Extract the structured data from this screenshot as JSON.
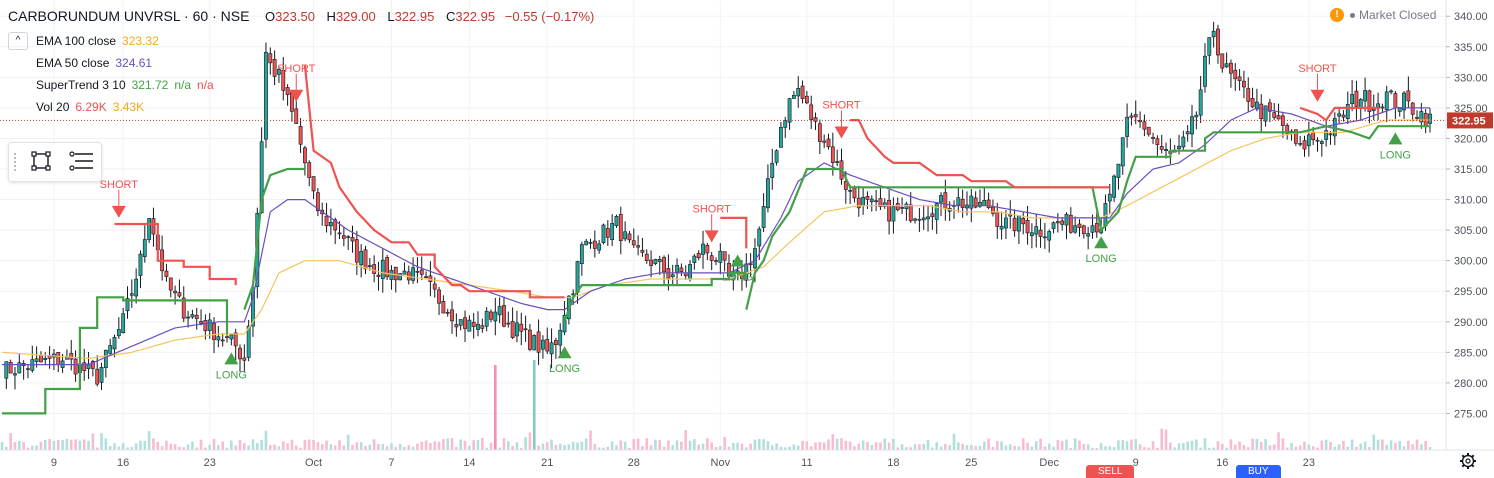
{
  "header": {
    "symbol": "CARBORUNDUM UNVRSL · 60 · NSE",
    "open_label": "O",
    "open": "323.50",
    "high_label": "H",
    "high": "329.00",
    "low_label": "L",
    "low": "322.95",
    "close_label": "C",
    "close": "322.95",
    "change": "−0.55 (−0.17%)"
  },
  "legend": {
    "collapse": "^",
    "ema100_label": "EMA 100 close",
    "ema100_value": "323.32",
    "ema50_label": "EMA 50 close",
    "ema50_value": "324.61",
    "st_label": "SuperTrend 3 10",
    "st_value": "321.72",
    "st_na1": "n/a",
    "st_na2": "n/a",
    "vol_label": "Vol 20",
    "vol_value1": "6.29K",
    "vol_value2": "3.43K"
  },
  "market_status": "Market Closed",
  "bottom_buttons": {
    "sell": "SELL",
    "buy": "BUY"
  },
  "colors": {
    "up": "#26a69a",
    "down": "#ef5350",
    "ema100": "#f7c35f",
    "ema50": "#6a4fbf",
    "st_up": "#43a047",
    "st_down": "#ef5350",
    "bear_text": "#ef5350",
    "bull_text": "#43a047",
    "grid": "#f0f3fa",
    "axis_text": "#50535e",
    "price_line": "#c0392b"
  },
  "chart_data": {
    "type": "candlestick",
    "y_axis": {
      "min": 270,
      "max": 342,
      "ticks": [
        275,
        280,
        285,
        290,
        295,
        300,
        305,
        310,
        315,
        320,
        325,
        330,
        335,
        340
      ]
    },
    "x_axis": {
      "labels": [
        "9",
        "16",
        "23",
        "Oct",
        "7",
        "14",
        "21",
        "28",
        "Nov",
        "11",
        "18",
        "25",
        "Dec",
        "9",
        "16",
        "23"
      ]
    },
    "last_price": "322.95",
    "close_path": [
      [
        0,
        282
      ],
      [
        14,
        284
      ],
      [
        22,
        281
      ],
      [
        28,
        290
      ],
      [
        32,
        300
      ],
      [
        34,
        308
      ],
      [
        38,
        296
      ],
      [
        42,
        292
      ],
      [
        46,
        290
      ],
      [
        50,
        288
      ],
      [
        54,
        286
      ],
      [
        56,
        284
      ],
      [
        58,
        296
      ],
      [
        60,
        320
      ],
      [
        61,
        334
      ],
      [
        62,
        332
      ],
      [
        64,
        330
      ],
      [
        66,
        326
      ],
      [
        68,
        322
      ],
      [
        70,
        316
      ],
      [
        72,
        310
      ],
      [
        74,
        307
      ],
      [
        78,
        305
      ],
      [
        82,
        301
      ],
      [
        86,
        299
      ],
      [
        90,
        298
      ],
      [
        94,
        298
      ],
      [
        98,
        296
      ],
      [
        102,
        293
      ],
      [
        106,
        290
      ],
      [
        110,
        289
      ],
      [
        114,
        292
      ],
      [
        118,
        289
      ],
      [
        122,
        287
      ],
      [
        126,
        285
      ],
      [
        128,
        287
      ],
      [
        130,
        292
      ],
      [
        132,
        296
      ],
      [
        134,
        302
      ],
      [
        138,
        304
      ],
      [
        142,
        306
      ],
      [
        146,
        301
      ],
      [
        150,
        300
      ],
      [
        154,
        298
      ],
      [
        158,
        298
      ],
      [
        162,
        302
      ],
      [
        166,
        300
      ],
      [
        168,
        297
      ],
      [
        170,
        297
      ],
      [
        172,
        299
      ],
      [
        174,
        302
      ],
      [
        176,
        308
      ],
      [
        178,
        316
      ],
      [
        180,
        322
      ],
      [
        182,
        326
      ],
      [
        184,
        328
      ],
      [
        186,
        325
      ],
      [
        188,
        322
      ],
      [
        190,
        320
      ],
      [
        192,
        317
      ],
      [
        194,
        314
      ],
      [
        196,
        311
      ],
      [
        200,
        309
      ],
      [
        204,
        308
      ],
      [
        208,
        308
      ],
      [
        212,
        308
      ],
      [
        216,
        309
      ],
      [
        220,
        310
      ],
      [
        224,
        309
      ],
      [
        228,
        309
      ],
      [
        230,
        307
      ],
      [
        232,
        306
      ],
      [
        236,
        306
      ],
      [
        240,
        305
      ],
      [
        244,
        306
      ],
      [
        248,
        306
      ],
      [
        252,
        306
      ],
      [
        254,
        306
      ],
      [
        256,
        310
      ],
      [
        258,
        316
      ],
      [
        260,
        322
      ],
      [
        262,
        323
      ],
      [
        264,
        322
      ],
      [
        266,
        320
      ],
      [
        268,
        318
      ],
      [
        270,
        317
      ],
      [
        272,
        318
      ],
      [
        274,
        320
      ],
      [
        276,
        324
      ],
      [
        278,
        332
      ],
      [
        280,
        338
      ],
      [
        282,
        332
      ],
      [
        284,
        330
      ],
      [
        286,
        328
      ],
      [
        288,
        327
      ],
      [
        290,
        325
      ],
      [
        292,
        324
      ],
      [
        294,
        323
      ],
      [
        296,
        322
      ],
      [
        298,
        320
      ],
      [
        300,
        318
      ],
      [
        302,
        320
      ],
      [
        304,
        320
      ],
      [
        306,
        321
      ],
      [
        308,
        322
      ],
      [
        310,
        324
      ],
      [
        312,
        326
      ],
      [
        314,
        327
      ],
      [
        316,
        326
      ],
      [
        318,
        326
      ],
      [
        320,
        327
      ],
      [
        322,
        326
      ],
      [
        324,
        326
      ],
      [
        326,
        325
      ],
      [
        328,
        324
      ],
      [
        330,
        323
      ]
    ],
    "ema50_path": [
      [
        0,
        283
      ],
      [
        20,
        283
      ],
      [
        30,
        286
      ],
      [
        40,
        289
      ],
      [
        50,
        290
      ],
      [
        56,
        290
      ],
      [
        58,
        294
      ],
      [
        60,
        301
      ],
      [
        62,
        308
      ],
      [
        66,
        310
      ],
      [
        70,
        310
      ],
      [
        74,
        308
      ],
      [
        80,
        305
      ],
      [
        88,
        302
      ],
      [
        96,
        299
      ],
      [
        104,
        297
      ],
      [
        112,
        295
      ],
      [
        120,
        293
      ],
      [
        126,
        292
      ],
      [
        130,
        292
      ],
      [
        136,
        295
      ],
      [
        144,
        297
      ],
      [
        152,
        298
      ],
      [
        160,
        298
      ],
      [
        168,
        298
      ],
      [
        174,
        300
      ],
      [
        180,
        307
      ],
      [
        184,
        313
      ],
      [
        190,
        316
      ],
      [
        196,
        314
      ],
      [
        204,
        312
      ],
      [
        212,
        310
      ],
      [
        220,
        309
      ],
      [
        228,
        309
      ],
      [
        236,
        308
      ],
      [
        244,
        307
      ],
      [
        252,
        307
      ],
      [
        256,
        307
      ],
      [
        260,
        311
      ],
      [
        266,
        315
      ],
      [
        272,
        316
      ],
      [
        278,
        319
      ],
      [
        284,
        323
      ],
      [
        290,
        325
      ],
      [
        298,
        324
      ],
      [
        306,
        322
      ],
      [
        314,
        323
      ],
      [
        322,
        325
      ],
      [
        330,
        325
      ]
    ],
    "ema100_path": [
      [
        0,
        285
      ],
      [
        20,
        284
      ],
      [
        30,
        285
      ],
      [
        40,
        287
      ],
      [
        50,
        288
      ],
      [
        56,
        288
      ],
      [
        60,
        292
      ],
      [
        64,
        298
      ],
      [
        70,
        300
      ],
      [
        78,
        300
      ],
      [
        88,
        298
      ],
      [
        98,
        297
      ],
      [
        108,
        296
      ],
      [
        118,
        295
      ],
      [
        126,
        294
      ],
      [
        132,
        294
      ],
      [
        140,
        296
      ],
      [
        150,
        297
      ],
      [
        160,
        297
      ],
      [
        168,
        297
      ],
      [
        176,
        299
      ],
      [
        182,
        303
      ],
      [
        190,
        308
      ],
      [
        198,
        309
      ],
      [
        206,
        309
      ],
      [
        214,
        309
      ],
      [
        222,
        308
      ],
      [
        230,
        308
      ],
      [
        238,
        307
      ],
      [
        246,
        307
      ],
      [
        254,
        307
      ],
      [
        260,
        309
      ],
      [
        268,
        312
      ],
      [
        276,
        315
      ],
      [
        284,
        318
      ],
      [
        292,
        320
      ],
      [
        300,
        321
      ],
      [
        310,
        321
      ],
      [
        320,
        323
      ],
      [
        330,
        323
      ]
    ],
    "supertrend_segments": [
      {
        "dir": "up",
        "points": [
          [
            0,
            275
          ],
          [
            10,
            275
          ],
          [
            10,
            279
          ],
          [
            18,
            279
          ],
          [
            18,
            289
          ],
          [
            22,
            289
          ],
          [
            22,
            294
          ],
          [
            28,
            294
          ],
          [
            28,
            293.5
          ],
          [
            52,
            293.5
          ],
          [
            52,
            288
          ]
        ]
      },
      {
        "dir": "down",
        "points": [
          [
            26,
            306
          ],
          [
            36,
            306
          ],
          [
            36,
            300
          ],
          [
            42,
            300
          ],
          [
            42,
            299
          ],
          [
            48,
            299
          ],
          [
            48,
            297
          ],
          [
            54,
            297
          ],
          [
            54,
            296
          ]
        ]
      },
      {
        "dir": "up",
        "points": [
          [
            56,
            292
          ],
          [
            58,
            296
          ],
          [
            60,
            310
          ],
          [
            62,
            314
          ],
          [
            66,
            315
          ],
          [
            70,
            315
          ]
        ]
      },
      {
        "dir": "down",
        "points": [
          [
            70,
            332
          ],
          [
            72,
            318
          ],
          [
            76,
            316
          ],
          [
            78,
            312
          ],
          [
            82,
            308
          ],
          [
            86,
            305
          ],
          [
            90,
            303
          ],
          [
            94,
            303
          ],
          [
            96,
            301
          ],
          [
            100,
            301
          ],
          [
            100,
            299
          ],
          [
            104,
            296
          ],
          [
            106,
            296
          ],
          [
            108,
            295
          ],
          [
            122,
            295
          ],
          [
            122,
            294
          ],
          [
            128,
            294
          ],
          [
            130,
            294
          ]
        ]
      },
      {
        "dir": "up",
        "points": [
          [
            130,
            290
          ],
          [
            132,
            294
          ],
          [
            134,
            296
          ],
          [
            164,
            296
          ],
          [
            164,
            297
          ],
          [
            168,
            297
          ],
          [
            168,
            298
          ],
          [
            172,
            298
          ]
        ]
      },
      {
        "dir": "down",
        "points": [
          [
            166,
            307
          ],
          [
            172,
            307
          ],
          [
            172,
            302
          ]
        ]
      },
      {
        "dir": "up",
        "points": [
          [
            172,
            292
          ],
          [
            174,
            298
          ],
          [
            176,
            300
          ],
          [
            178,
            304
          ],
          [
            182,
            308
          ],
          [
            186,
            315
          ],
          [
            194,
            315
          ],
          [
            196,
            312
          ],
          [
            206,
            312
          ],
          [
            212,
            312
          ],
          [
            224,
            312
          ],
          [
            240,
            312
          ],
          [
            252,
            312
          ],
          [
            254,
            305
          ],
          [
            258,
            308
          ],
          [
            260,
            313
          ],
          [
            262,
            317
          ],
          [
            270,
            317
          ],
          [
            270,
            318
          ],
          [
            278,
            318
          ],
          [
            278,
            320
          ],
          [
            280,
            321
          ],
          [
            300,
            321
          ],
          [
            306,
            322
          ],
          [
            312,
            321
          ],
          [
            316,
            320
          ],
          [
            318,
            322
          ],
          [
            330,
            322
          ]
        ]
      },
      {
        "dir": "down",
        "points": [
          [
            196,
            323
          ],
          [
            198,
            323
          ],
          [
            200,
            320
          ],
          [
            204,
            317
          ],
          [
            206,
            316
          ],
          [
            212,
            316
          ],
          [
            216,
            314
          ],
          [
            222,
            314
          ],
          [
            224,
            313
          ],
          [
            232,
            313
          ],
          [
            234,
            312
          ],
          [
            240,
            312
          ],
          [
            252,
            312
          ],
          [
            256,
            312
          ]
        ]
      },
      {
        "dir": "down",
        "points": [
          [
            300,
            325
          ],
          [
            304,
            324
          ],
          [
            306,
            323
          ],
          [
            308,
            325
          ],
          [
            312,
            325
          ],
          [
            318,
            325
          ],
          [
            318,
            324
          ]
        ]
      }
    ],
    "signals": [
      {
        "type": "SHORT",
        "i": 27,
        "price": 307
      },
      {
        "type": "LONG",
        "i": 53,
        "price": 285
      },
      {
        "type": "SHORT",
        "i": 68,
        "price": 326
      },
      {
        "type": "LONG",
        "i": 130,
        "price": 286
      },
      {
        "type": "SHORT",
        "i": 164,
        "price": 303
      },
      {
        "type": "LONG",
        "i": 170,
        "price": 301
      },
      {
        "type": "SHORT",
        "i": 194,
        "price": 320
      },
      {
        "type": "LONG",
        "i": 254,
        "price": 304
      },
      {
        "type": "SHORT",
        "i": 304,
        "price": 326
      },
      {
        "type": "LONG",
        "i": 322,
        "price": 321
      }
    ],
    "volume_spikes": [
      {
        "i": 114,
        "dir": "down",
        "h": 0.85
      },
      {
        "i": 123,
        "dir": "up",
        "h": 0.9
      }
    ]
  }
}
